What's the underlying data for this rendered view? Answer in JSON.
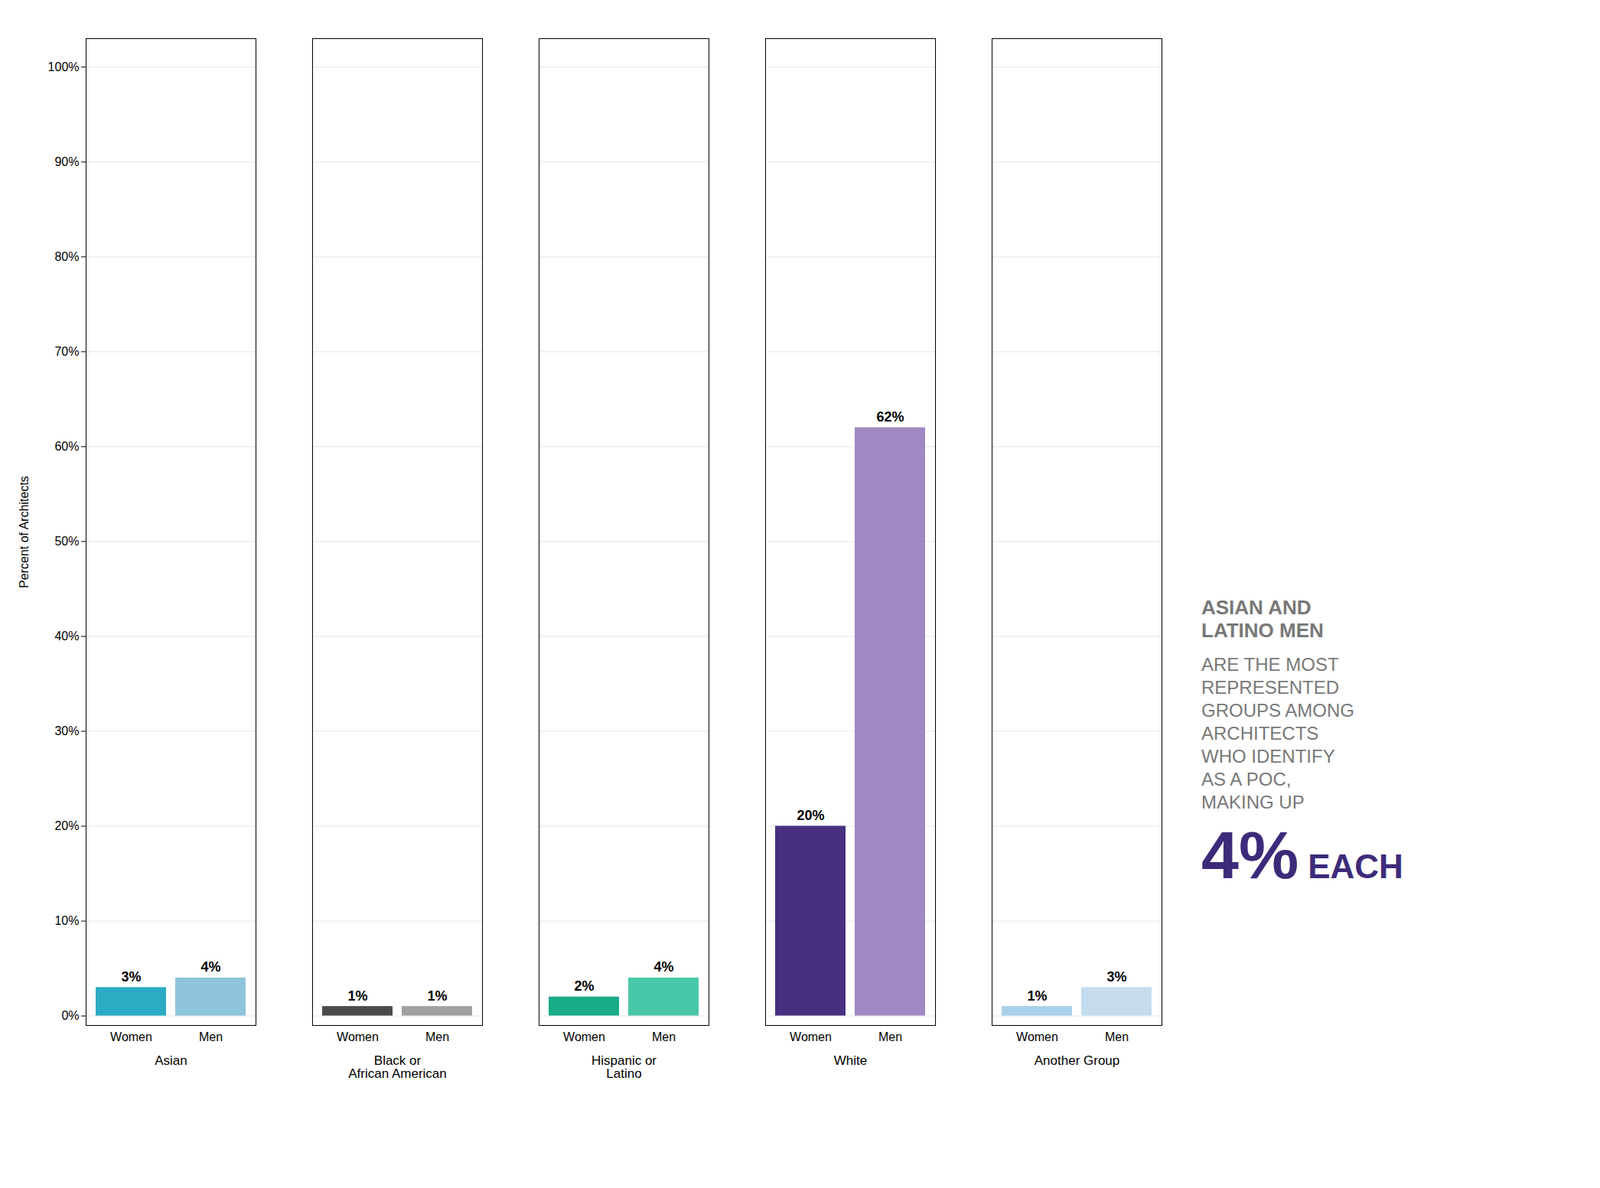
{
  "chart_data": {
    "type": "bar",
    "categories": [
      "Asian",
      "Black or\nAfrican American",
      "Hispanic or\nLatino",
      "White",
      "Another Group"
    ],
    "series": [
      {
        "name": "Women",
        "colors": [
          "#2BACC4",
          "#4A4A4A",
          "#1AAB8A",
          "#483080",
          "#A8D0E8"
        ],
        "values": [
          3,
          1,
          2,
          20,
          1
        ],
        "value_labels": [
          "3%",
          "1%",
          "2%",
          "20%",
          "1%"
        ]
      },
      {
        "name": "Men",
        "colors": [
          "#8EC4DC",
          "#A0A0A0",
          "#48C8A8",
          "#A088C4",
          "#C4DCEE"
        ],
        "values": [
          4,
          1,
          4,
          62,
          3
        ],
        "value_labels": [
          "4%",
          "1%",
          "4%",
          "62%",
          "3%"
        ]
      }
    ],
    "ylabel": "Percent of Architects",
    "ylim": [
      -1,
      103
    ],
    "yticks": [
      {
        "value": 0,
        "label": "0%"
      },
      {
        "value": 10,
        "label": "10%"
      },
      {
        "value": 20,
        "label": "20%"
      },
      {
        "value": 30,
        "label": "30%"
      },
      {
        "value": 40,
        "label": "40%"
      },
      {
        "value": 50,
        "label": "50%"
      },
      {
        "value": 60,
        "label": "60%"
      },
      {
        "value": 70,
        "label": "70%"
      },
      {
        "value": 80,
        "label": "80%"
      },
      {
        "value": 90,
        "label": "90%"
      },
      {
        "value": 100,
        "label": "100%"
      }
    ],
    "grid": true,
    "data_labels": true,
    "annotations": [
      {
        "text": "ASIAN AND\nLATINO MEN",
        "color": "#787878"
      },
      {
        "text": "ARE THE MOST\nREPRESENTED\nGROUPS AMONG\nARCHITECTS\nWHO IDENTIFY\nAS A POC,\nMAKING UP",
        "color": "#787878"
      },
      {
        "text": "4%",
        "color": "#3D2B7A"
      },
      {
        "text": "EACH",
        "color": "#3D2B7A"
      }
    ]
  }
}
